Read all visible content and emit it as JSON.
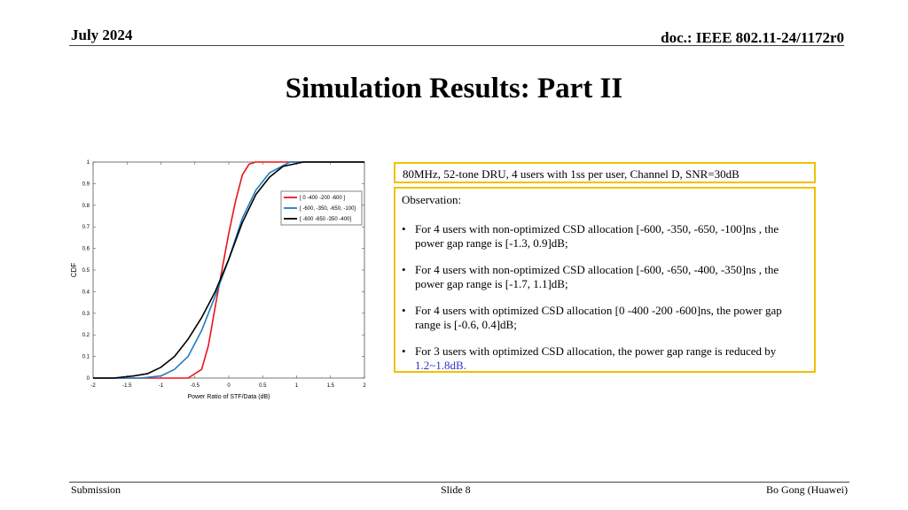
{
  "header": {
    "date": "July 2024",
    "doc": "doc.: IEEE 802.11-24/1172r0"
  },
  "title": "Simulation Results: Part II",
  "info_box": "80MHz, 52-tone DRU, 4 users with 1ss per user, Channel D, SNR=30dB",
  "observation": {
    "heading": "Observation:",
    "items": [
      {
        "bullet": "•",
        "text": "For 4 users with non-optimized CSD allocation [-600, -350, -650, -100]ns , the power gap range is [-1.3, 0.9]dB;"
      },
      {
        "bullet": "•",
        "text": "For 4 users with non-optimized CSD allocation [-600, -650, -400, -350]ns , the power gap range is [-1.7, 1.1]dB;"
      },
      {
        "bullet": "•",
        "text": "For 4 users with optimized CSD allocation [0 -400 -200 -600]ns, the power gap range is [-0.6, 0.4]dB;"
      },
      {
        "bullet": "•",
        "text": "For 3 users with optimized CSD allocation, the power gap range is reduced by",
        "highlight": "1.2~1.8dB."
      }
    ]
  },
  "footer": {
    "left": "Submission",
    "center": "Slide 8",
    "right": "Bo Gong (Huawei)"
  },
  "chart_data": {
    "type": "line",
    "title": "",
    "xlabel": "Power Ratio of STF/Data (dB)",
    "ylabel": "CDF",
    "xlim": [
      -2,
      2
    ],
    "ylim": [
      0,
      1
    ],
    "xticks": [
      "-2",
      "-1.5",
      "-1",
      "-0.5",
      "0",
      "0.5",
      "1",
      "1.5",
      "2"
    ],
    "yticks": [
      "0",
      "0.1",
      "0.2",
      "0.3",
      "0.4",
      "0.5",
      "0.6",
      "0.7",
      "0.8",
      "0.9",
      "1"
    ],
    "grid": false,
    "legend_position": "top-right",
    "series": [
      {
        "name": "[ 0 -400 -200 -600 ]",
        "color": "#e8141c",
        "x": [
          -2,
          -0.6,
          -0.4,
          -0.3,
          -0.2,
          -0.1,
          0,
          0.1,
          0.2,
          0.3,
          0.4,
          2
        ],
        "y": [
          0,
          0,
          0.04,
          0.15,
          0.33,
          0.5,
          0.67,
          0.82,
          0.94,
          0.99,
          1,
          1
        ]
      },
      {
        "name": "[ -600, -350, -650, -100]",
        "color": "#1f7dbf",
        "x": [
          -2,
          -1.3,
          -1.0,
          -0.8,
          -0.6,
          -0.4,
          -0.2,
          0,
          0.2,
          0.4,
          0.6,
          0.9,
          2
        ],
        "y": [
          0,
          0,
          0.01,
          0.04,
          0.1,
          0.22,
          0.38,
          0.55,
          0.74,
          0.87,
          0.95,
          1,
          1
        ]
      },
      {
        "name": "[ -600 -650 -350 -400]",
        "color": "#000000",
        "x": [
          -2,
          -1.7,
          -1.4,
          -1.2,
          -1.0,
          -0.8,
          -0.6,
          -0.4,
          -0.2,
          0,
          0.2,
          0.4,
          0.6,
          0.8,
          1.1,
          2
        ],
        "y": [
          0,
          0,
          0.01,
          0.02,
          0.05,
          0.1,
          0.18,
          0.28,
          0.4,
          0.55,
          0.72,
          0.85,
          0.93,
          0.98,
          1,
          1
        ]
      }
    ]
  }
}
